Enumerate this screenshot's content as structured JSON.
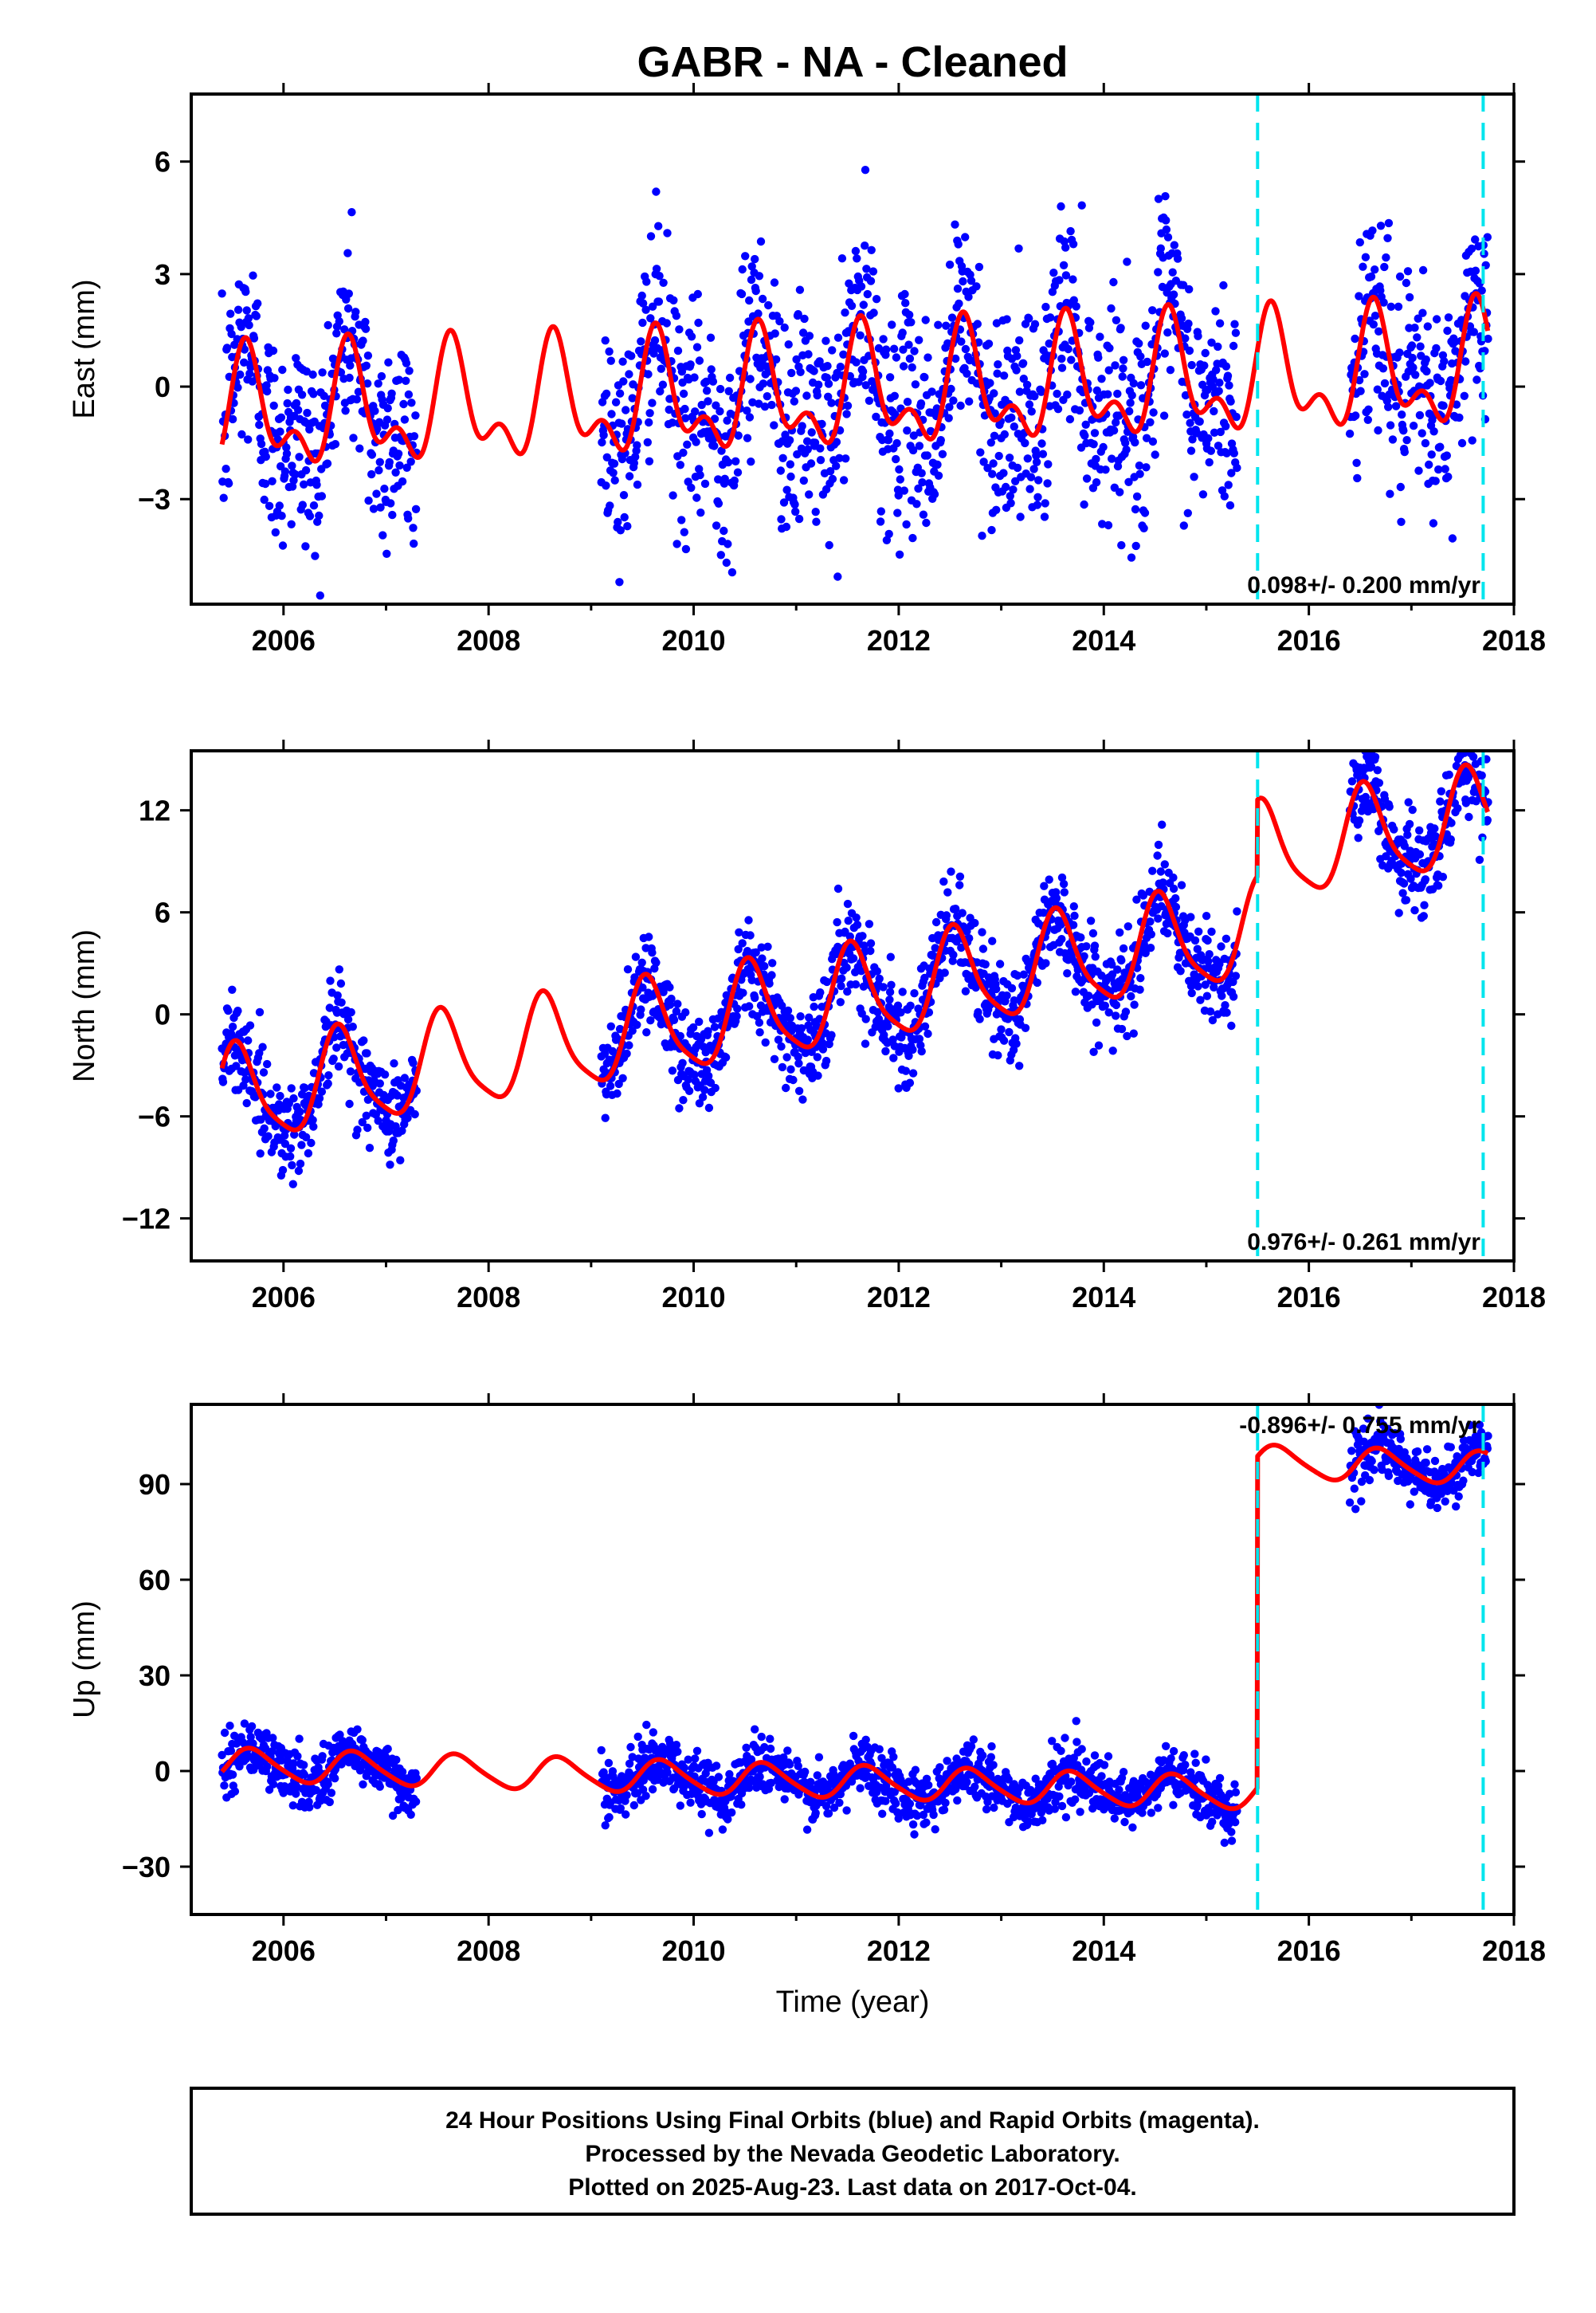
{
  "title": "GABR  - NA - Cleaned",
  "colors": {
    "points": "#0000ff",
    "model": "#ff0000",
    "offset_line": "#00e5ee",
    "frame": "#000000"
  },
  "chart_data": [
    {
      "type": "scatter",
      "component": "East",
      "ylabel": "East (mm)",
      "xlabel": "",
      "xlim": [
        2005.1,
        2018.0
      ],
      "ylim": [
        -5.8,
        7.8
      ],
      "yticks": [
        -3,
        0,
        3,
        6
      ],
      "ytick_labels": [
        "−3",
        "0",
        "3",
        "6"
      ],
      "xticks": [
        2006,
        2008,
        2010,
        2012,
        2014,
        2016,
        2018
      ],
      "xtick_labels": [
        "2006",
        "2008",
        "2010",
        "2012",
        "2014",
        "2016",
        "2018"
      ],
      "rate": "0.098+/- 0.200 mm/yr",
      "offset_lines_x": [
        2015.5,
        2017.7
      ],
      "data_segments": [
        [
          2005.4,
          2007.3
        ],
        [
          2009.1,
          2015.3
        ],
        [
          2016.4,
          2017.75
        ]
      ],
      "model": {
        "type": "line",
        "name": "",
        "x_range": [
          2005.4,
          2017.75
        ],
        "trend": {
          "ref_year": 2011.5,
          "value_at_ref": -0.2,
          "rate_mm_per_yr": 0.098
        },
        "annual_amp": 1.3,
        "annual_peak_frac": 0.65,
        "semiannual_amp": 0.8,
        "semiannual_peak_frac": 0.62,
        "offsets": []
      },
      "scatter_noise_sd": 1.45,
      "grid": false,
      "legend": "none"
    },
    {
      "type": "scatter",
      "component": "North",
      "ylabel": "North (mm)",
      "xlabel": "",
      "xlim": [
        2005.1,
        2018.0
      ],
      "ylim": [
        -14.5,
        15.5
      ],
      "yticks": [
        -12,
        -6,
        0,
        6,
        12
      ],
      "ytick_labels": [
        "−12",
        "−6",
        "0",
        "6",
        "12"
      ],
      "xticks": [
        2006,
        2008,
        2010,
        2012,
        2014,
        2016,
        2018
      ],
      "xtick_labels": [
        "2006",
        "2008",
        "2010",
        "2012",
        "2014",
        "2016",
        "2018"
      ],
      "rate": "0.976+/- 0.261 mm/yr",
      "offset_lines_x": [
        2015.5,
        2017.7
      ],
      "data_segments": [
        [
          2005.4,
          2007.3
        ],
        [
          2009.1,
          2015.3
        ],
        [
          2016.4,
          2017.75
        ]
      ],
      "model": {
        "type": "line",
        "name": "",
        "x_range": [
          2005.4,
          2017.75
        ],
        "trend": {
          "ref_year": 2005.4,
          "value_at_ref": -5.0,
          "rate_mm_per_yr": 0.976
        },
        "annual_amp": 2.8,
        "annual_peak_frac": 0.55,
        "semiannual_amp": 0.6,
        "semiannual_peak_frac": 0.5,
        "offsets": [
          {
            "x": 2015.5,
            "value": 4.5
          }
        ]
      },
      "scatter_noise_sd": 1.4,
      "grid": false,
      "legend": "none"
    },
    {
      "type": "scatter",
      "component": "Up",
      "ylabel": "Up (mm)",
      "xlabel": "Time (year)",
      "xlim": [
        2005.1,
        2018.0
      ],
      "ylim": [
        -45,
        115
      ],
      "yticks": [
        -30,
        0,
        30,
        60,
        90
      ],
      "ytick_labels": [
        "−30",
        "0",
        "30",
        "60",
        "90"
      ],
      "xticks": [
        2006,
        2008,
        2010,
        2012,
        2014,
        2016,
        2018
      ],
      "xtick_labels": [
        "2006",
        "2008",
        "2010",
        "2012",
        "2014",
        "2016",
        "2018"
      ],
      "rate": "-0.896+/- 0.755 mm/yr",
      "offset_lines_x": [
        2015.5,
        2017.7
      ],
      "data_segments": [
        [
          2005.4,
          2007.3
        ],
        [
          2009.1,
          2015.3
        ],
        [
          2016.4,
          2017.75
        ]
      ],
      "model": {
        "type": "line",
        "name": "",
        "x_range": [
          2005.4,
          2017.75
        ],
        "trend": {
          "ref_year": 2005.4,
          "value_at_ref": 2.0,
          "rate_mm_per_yr": -0.896
        },
        "annual_amp": 5.0,
        "annual_peak_frac": 0.7,
        "semiannual_amp": 0.8,
        "semiannual_peak_frac": 0.6,
        "offsets": [
          {
            "x": 2015.5,
            "value": 104.0
          }
        ]
      },
      "scatter_noise_sd": 4.5,
      "grid": false,
      "legend": "none"
    }
  ],
  "footer": {
    "line1": "24 Hour Positions Using Final Orbits (blue) and Rapid Orbits (magenta).",
    "line2": "Processed by the Nevada Geodetic Laboratory.",
    "line3": "Plotted on 2025-Aug-23. Last data on 2017-Oct-04."
  }
}
